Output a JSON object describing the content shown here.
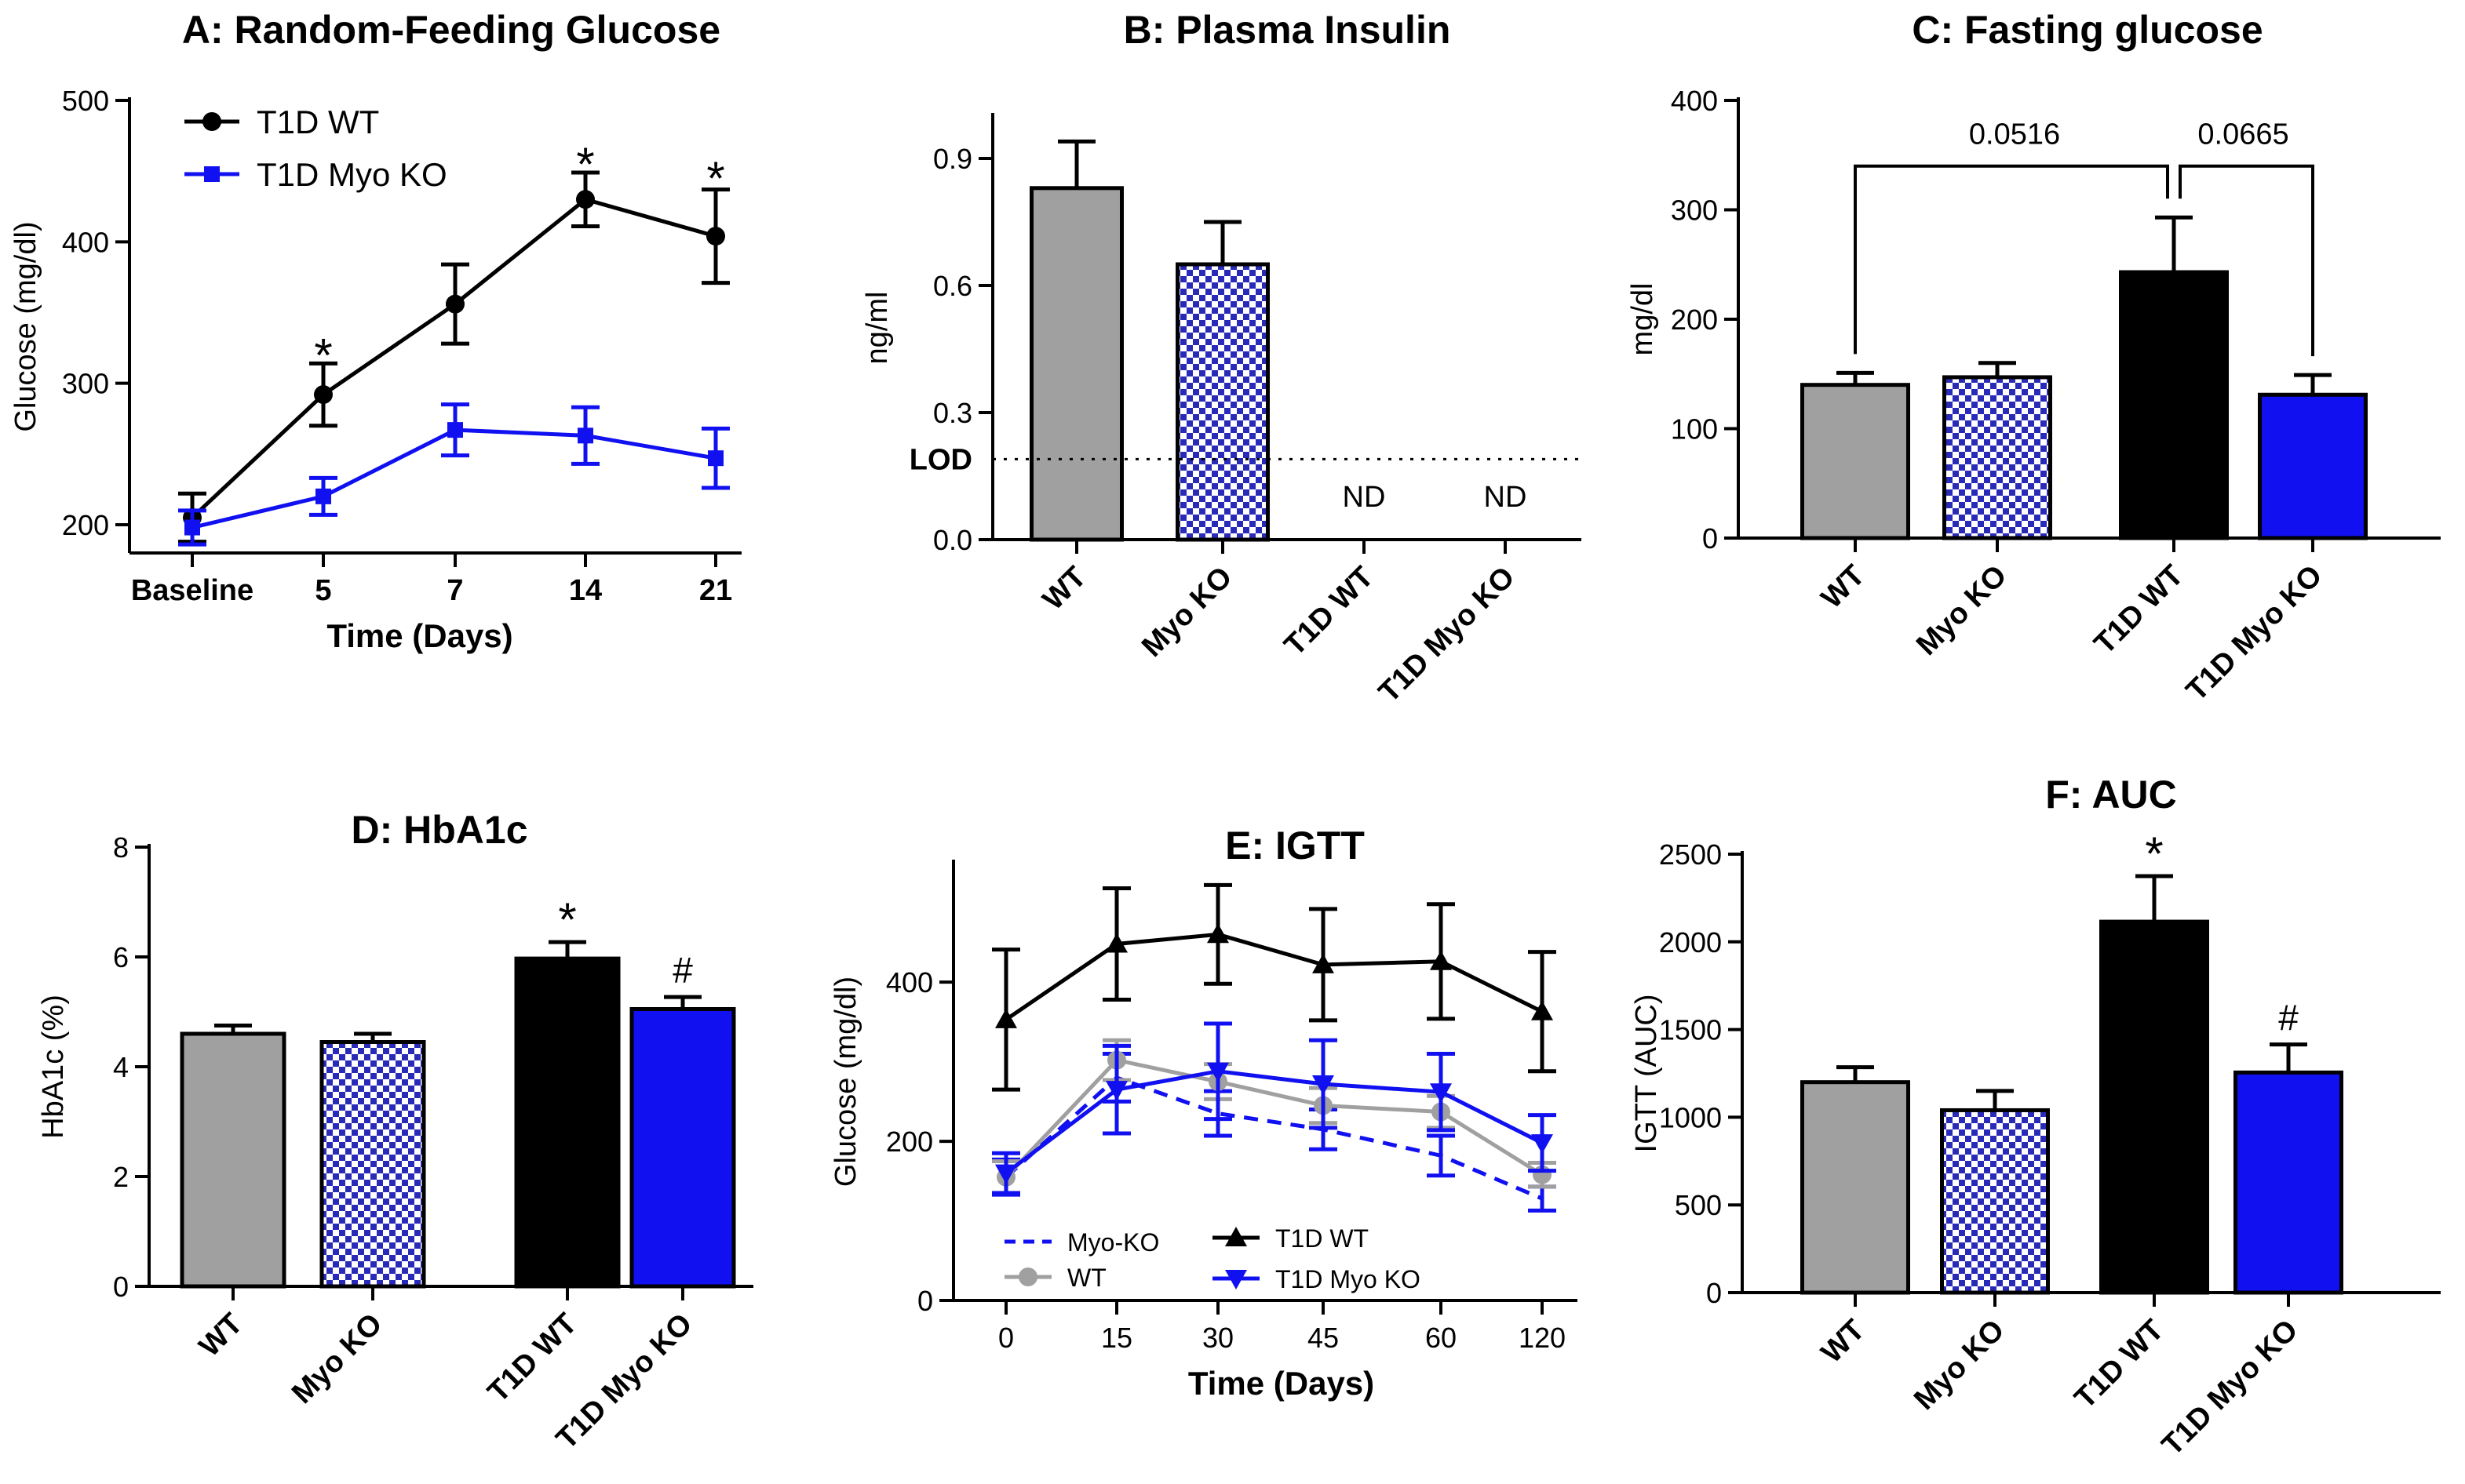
{
  "colors": {
    "black": "#000000",
    "blue": "#1010f0",
    "gray": "#a0a0a0",
    "checker": "#2a2ab8",
    "checker_light": "#ffffff"
  },
  "chart_data": [
    {
      "id": "A",
      "type": "line",
      "title": "A: Random-Feeding Glucose",
      "xlabel": "Time (Days)",
      "ylabel": "Glucose (mg/dl)",
      "categories": [
        "Baseline",
        "5",
        "7",
        "14",
        "21"
      ],
      "ylim": [
        180,
        500
      ],
      "yticks": [
        200,
        300,
        400,
        500
      ],
      "series": [
        {
          "name": "T1D WT",
          "color": "#000000",
          "marker": "circle",
          "values": [
            205,
            292,
            356,
            430,
            404
          ],
          "errors": [
            17,
            22,
            28,
            19,
            33
          ]
        },
        {
          "name": "T1D Myo KO",
          "color": "#1010f0",
          "marker": "square",
          "values": [
            198,
            220,
            267,
            263,
            247
          ],
          "errors": [
            12,
            13,
            18,
            20,
            21
          ]
        }
      ],
      "annotations": [
        {
          "text": "*",
          "category": 1,
          "value": 325
        },
        {
          "text": "*",
          "category": 3,
          "value": 460
        },
        {
          "text": "*",
          "category": 4,
          "value": 450
        }
      ]
    },
    {
      "id": "B",
      "type": "bar",
      "title": "B: Plasma Insulin",
      "xlabel": "",
      "ylabel": "ng/ml",
      "categories": [
        "WT",
        "Myo KO",
        "T1D WT",
        "T1D Myo KO"
      ],
      "values": [
        0.83,
        0.65,
        null,
        null
      ],
      "errors": [
        0.11,
        0.1,
        null,
        null
      ],
      "ylim": [
        0,
        1.0
      ],
      "yticks": [
        "0.0",
        "0.3",
        "0.6",
        "0.9"
      ],
      "reference_line": {
        "label": "LOD",
        "value": 0.19
      },
      "nd_labels": [
        "ND",
        "ND"
      ]
    },
    {
      "id": "C",
      "type": "bar",
      "title": "C: Fasting glucose",
      "xlabel": "",
      "ylabel": "mg/dl",
      "categories": [
        "WT",
        "Myo KO",
        "T1D WT",
        "T1D Myo KO"
      ],
      "values": [
        140,
        147,
        243,
        131
      ],
      "errors": [
        11,
        13,
        50,
        18
      ],
      "ylim": [
        0,
        400
      ],
      "yticks": [
        0,
        100,
        200,
        300,
        400
      ],
      "brackets": [
        {
          "from": 0,
          "to": 2,
          "label": "0.0516"
        },
        {
          "from": 2,
          "to": 3,
          "label": "0.0665"
        }
      ]
    },
    {
      "id": "D",
      "type": "bar",
      "title": "D: HbA1c",
      "xlabel": "",
      "ylabel": "HbA1c (%)",
      "categories": [
        "WT",
        "Myo KO",
        "T1D WT",
        "T1D Myo KO"
      ],
      "values": [
        4.6,
        4.45,
        5.97,
        5.05
      ],
      "errors": [
        0.15,
        0.15,
        0.3,
        0.22
      ],
      "ylim": [
        0,
        8
      ],
      "yticks": [
        0,
        2,
        4,
        6,
        8
      ],
      "marks": [
        "",
        "",
        "*",
        "#"
      ]
    },
    {
      "id": "E",
      "type": "line",
      "title": "E: IGTT",
      "xlabel": "Time (Days)",
      "ylabel": "Glucose (mg/dl)",
      "categories": [
        "0",
        "15",
        "30",
        "45",
        "60",
        "120"
      ],
      "ylim": [
        0,
        550
      ],
      "yticks": [
        0,
        200,
        400
      ],
      "series": [
        {
          "name": "Myo-KO",
          "color": "#1010f0",
          "dashed": true,
          "marker": "none",
          "values": [
            155,
            280,
            235,
            215,
            182,
            128
          ],
          "errors": [
            22,
            30,
            28,
            25,
            25,
            15
          ]
        },
        {
          "name": "WT",
          "color": "#a0a0a0",
          "marker": "circle",
          "values": [
            155,
            302,
            275,
            245,
            237,
            158
          ],
          "errors": [
            20,
            25,
            22,
            22,
            20,
            15
          ]
        },
        {
          "name": "T1D WT",
          "color": "#000000",
          "marker": "triangle-up",
          "values": [
            353,
            448,
            460,
            422,
            426,
            363
          ],
          "errors": [
            88,
            70,
            62,
            70,
            72,
            75
          ]
        },
        {
          "name": "T1D Myo KO",
          "color": "#1010f0",
          "marker": "triangle-down",
          "values": [
            160,
            265,
            288,
            272,
            262,
            198
          ],
          "errors": [
            25,
            55,
            60,
            55,
            48,
            35
          ]
        }
      ]
    },
    {
      "id": "F",
      "type": "bar",
      "title": "F: AUC",
      "xlabel": "",
      "ylabel": "IGTT (AUC)",
      "categories": [
        "WT",
        "Myo KO",
        "T1D WT",
        "T1D Myo KO"
      ],
      "values": [
        1200,
        1040,
        2115,
        1255
      ],
      "errors": [
        85,
        110,
        260,
        160
      ],
      "ylim": [
        0,
        2500
      ],
      "yticks": [
        0,
        500,
        1000,
        1500,
        2000,
        2500
      ],
      "marks": [
        "",
        "",
        "*",
        "#"
      ]
    }
  ]
}
